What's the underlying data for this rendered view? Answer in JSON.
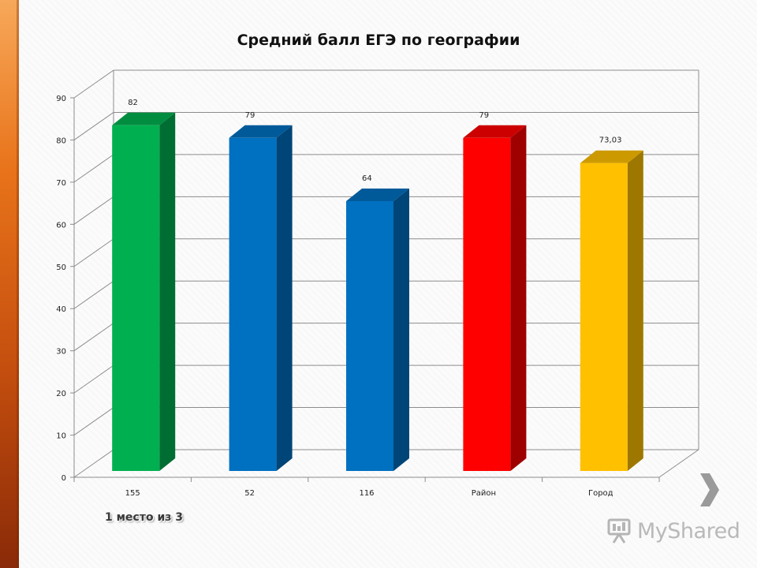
{
  "chart_data": {
    "type": "bar",
    "title": "Средний балл ЕГЭ по географии",
    "categories": [
      "155",
      "52",
      "116",
      "Район",
      "Город"
    ],
    "values": [
      82,
      79,
      64,
      79,
      73.03
    ],
    "value_labels": [
      "82",
      "79",
      "64",
      "79",
      "73,03"
    ],
    "colors": [
      "#00b050",
      "#0070c0",
      "#0070c0",
      "#ff0000",
      "#ffc000"
    ],
    "ylim": [
      0,
      90
    ],
    "yticks": [
      0,
      10,
      20,
      30,
      40,
      50,
      60,
      70,
      80,
      90
    ],
    "grid": true,
    "legend": "none",
    "style": "3d"
  },
  "subtitle": "1 место из 3",
  "logo": {
    "text": "MyShared",
    "icon": "presentation-board-icon"
  },
  "nav": {
    "next_icon": "chevron-right-icon"
  }
}
